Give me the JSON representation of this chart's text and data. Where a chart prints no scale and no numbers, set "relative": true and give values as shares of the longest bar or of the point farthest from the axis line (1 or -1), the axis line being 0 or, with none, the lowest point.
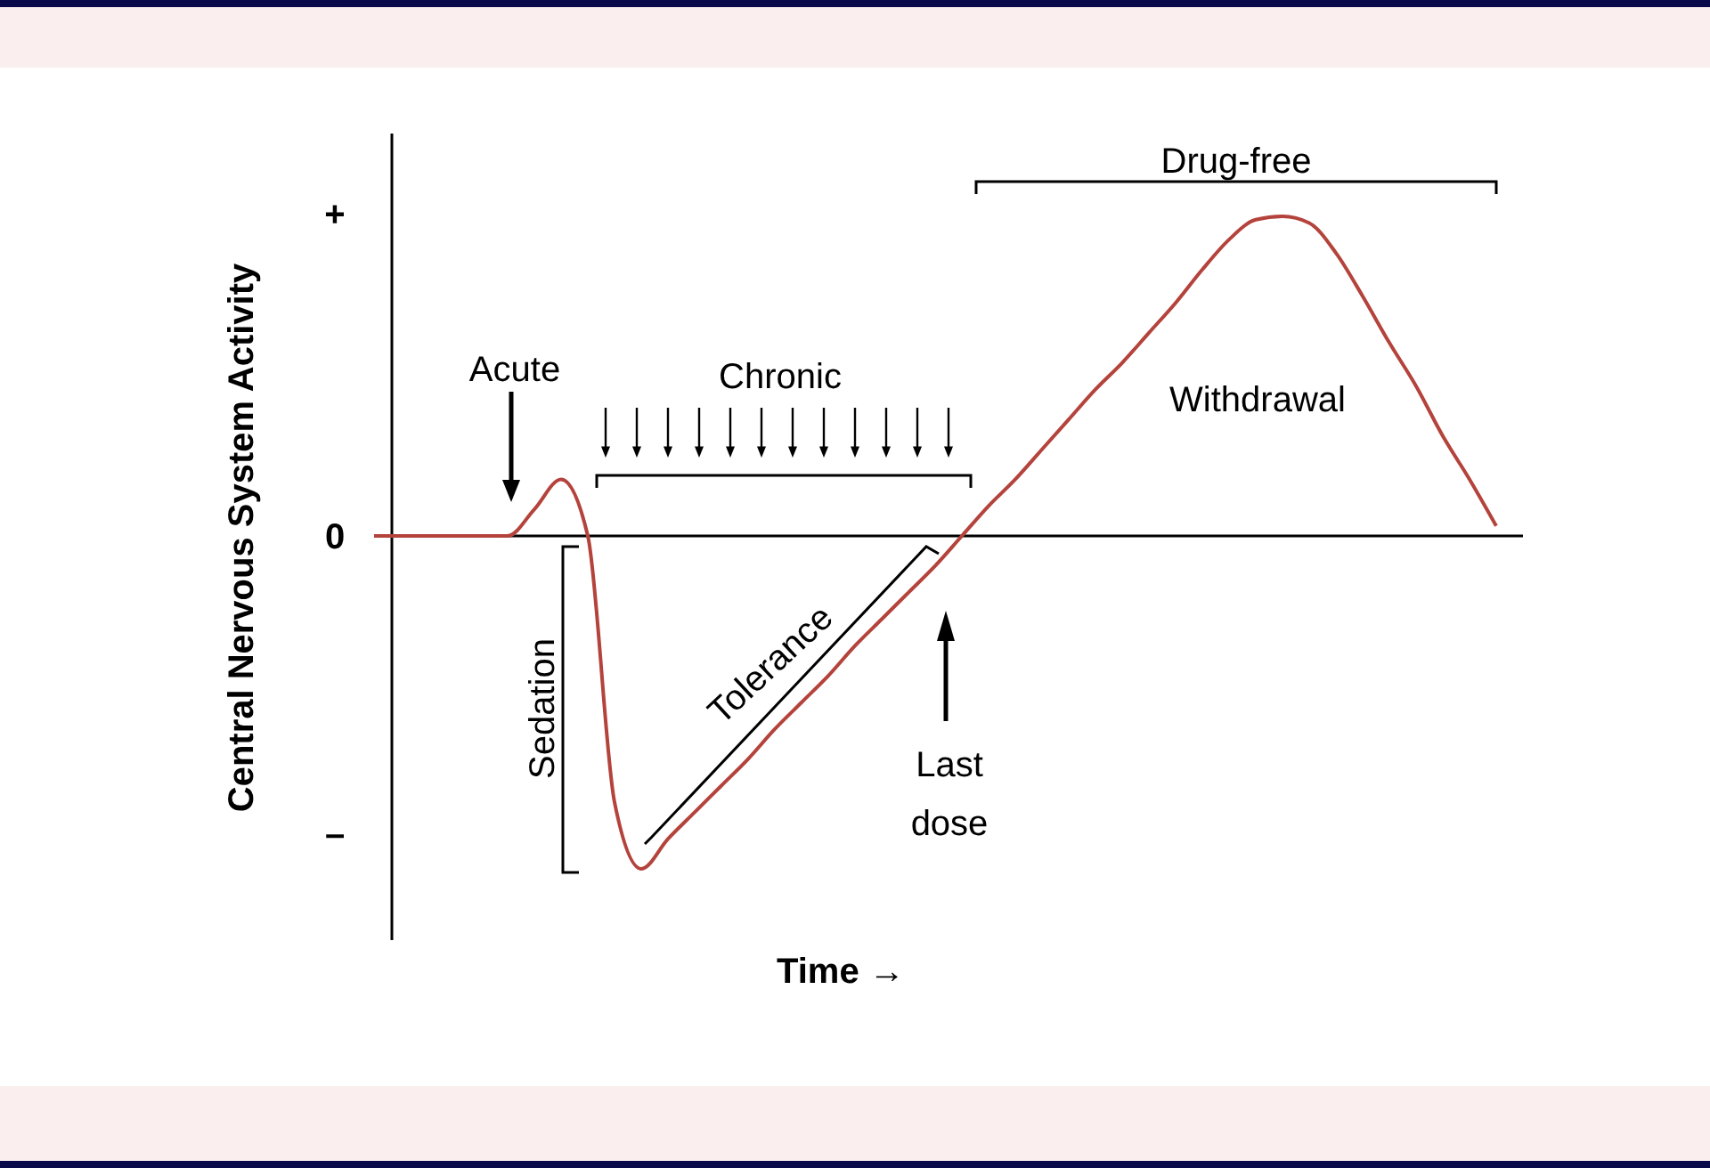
{
  "chart_data": {
    "type": "line",
    "relative": true,
    "xlabel": "Time →",
    "ylabel": "Central Nervous System Activity",
    "categories": [
      null,
      null,
      null,
      null,
      null,
      null,
      null,
      null,
      null,
      null,
      null,
      null,
      null,
      null,
      null,
      null,
      null,
      null,
      null,
      null,
      null,
      null,
      null,
      null,
      null,
      null,
      null,
      null,
      null,
      null,
      null,
      null,
      null,
      null,
      null,
      null,
      null,
      null,
      null,
      null,
      null,
      null,
      null,
      null
    ],
    "series": [
      {
        "color": "#b4433c",
        "values": [
          0,
          0,
          0,
          0,
          0,
          0,
          0.08,
          0.17,
          0,
          -0.8,
          -1,
          -0.91,
          -0.83,
          -0.75,
          -0.67,
          -0.58,
          -0.5,
          -0.42,
          -0.33,
          -0.25,
          -0.17,
          -0.09,
          0,
          0.09,
          0.17,
          0.26,
          0.35,
          0.44,
          0.52,
          0.61,
          0.7,
          0.8,
          0.89,
          0.95,
          0.96,
          0.94,
          0.85,
          0.72,
          0.58,
          0.45,
          0.3,
          0.17,
          0.03,
          null
        ]
      }
    ],
    "annotations": [
      "Acute",
      "Chronic",
      "Withdrawal",
      "Drug-free",
      "Sedation",
      "Tolerance",
      "Last dose",
      "+",
      "0",
      "–"
    ]
  }
}
